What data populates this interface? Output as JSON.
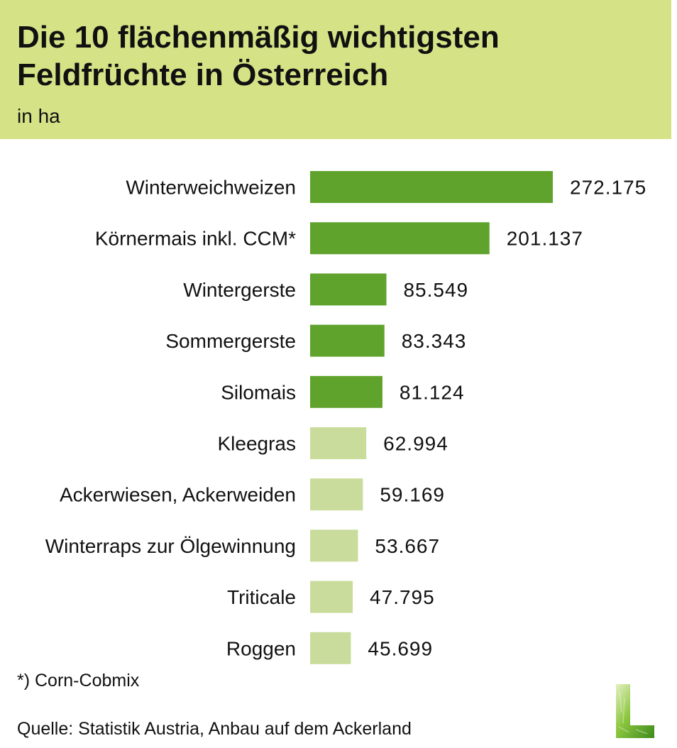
{
  "header": {
    "title": "Die 10 flächenmäßig wichtigsten\nFeldfrüchte in Österreich",
    "subtitle": "in ha"
  },
  "chart_data": {
    "type": "bar",
    "orientation": "horizontal",
    "categories": [
      "Winterweichweizen",
      "Körnermais inkl. CCM*",
      "Wintergerste",
      "Sommergerste",
      "Silomais",
      "Kleegras",
      "Ackerwiesen, Ackerweiden",
      "Winterraps zur Ölgewinnung",
      "Triticale",
      "Roggen"
    ],
    "values": [
      272175,
      201137,
      85549,
      83343,
      81124,
      62994,
      59169,
      53667,
      47795,
      45699
    ],
    "value_labels": [
      "272.175",
      "201.137",
      "85.549",
      "83.343",
      "81.124",
      "62.994",
      "59.169",
      "53.667",
      "47.795",
      "45.699"
    ],
    "bar_colors": [
      "#5fa22c",
      "#5fa22c",
      "#5fa22c",
      "#5fa22c",
      "#5fa22c",
      "#c9dc9b",
      "#c9dc9b",
      "#c9dc9b",
      "#c9dc9b",
      "#c9dc9b"
    ],
    "grid": false,
    "legend": false
  },
  "footnote": "*) Corn-Cobmix",
  "source": "Quelle: Statistik Austria, Anbau auf dem Ackerland",
  "colors": {
    "header_bg": "#d5e386",
    "bar_dark": "#5fa22c",
    "bar_light": "#c9dc9b"
  },
  "logo": {
    "icon": "l-letter-grass-logo"
  }
}
